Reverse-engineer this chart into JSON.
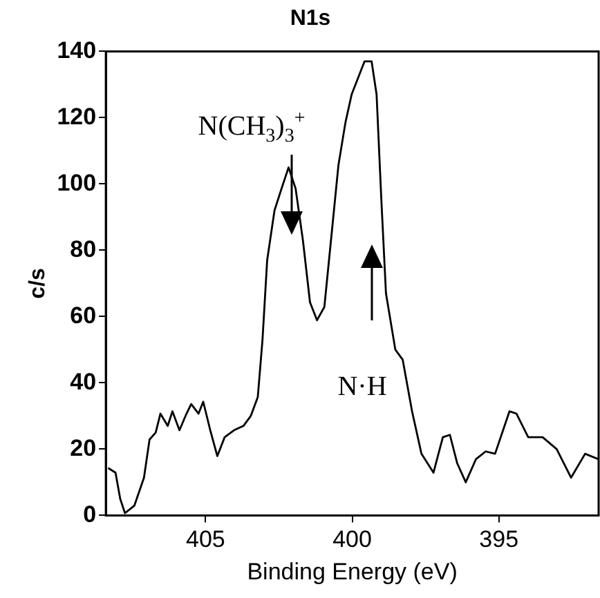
{
  "chart_data": {
    "type": "line",
    "title": "N1s",
    "xlabel": "Binding Energy (eV)",
    "ylabel": "c/s",
    "xlim": [
      408.4,
      391.6
    ],
    "xticks": [
      405,
      400,
      395
    ],
    "ylim": [
      0,
      140
    ],
    "yticks": [
      0,
      20,
      40,
      60,
      80,
      100,
      120,
      140
    ],
    "grid": false,
    "legend": false,
    "marker": "none",
    "line_style": "solid",
    "series": [
      {
        "color": "#000000",
        "x": [
          408.32,
          408.07,
          407.91,
          407.75,
          407.43,
          407.1,
          406.91,
          406.7,
          406.54,
          406.29,
          406.13,
          405.89,
          405.65,
          405.49,
          405.24,
          405.08,
          404.84,
          404.6,
          404.35,
          404.03,
          403.71,
          403.46,
          403.22,
          403.06,
          402.9,
          402.65,
          402.41,
          402.17,
          401.93,
          401.68,
          401.44,
          401.2,
          400.95,
          400.71,
          400.47,
          400.23,
          400.02,
          399.58,
          399.34,
          399.17,
          399.01,
          398.85,
          398.53,
          398.28,
          397.96,
          397.64,
          397.23,
          396.91,
          396.67,
          396.42,
          396.13,
          395.78,
          395.45,
          395.13,
          394.64,
          394.4,
          394.0,
          393.51,
          393.03,
          392.54,
          392.06,
          391.62
        ],
        "values": [
          14.3,
          12.9,
          5,
          0.7,
          2.9,
          11.4,
          22.9,
          25,
          30.7,
          27,
          31.4,
          25.7,
          30.7,
          33.6,
          30.7,
          34.3,
          25.7,
          17.9,
          23.6,
          25.7,
          27,
          30,
          35.7,
          52.9,
          77,
          92,
          98.6,
          105,
          98.6,
          82.9,
          64.3,
          58.9,
          62.9,
          84.3,
          105.7,
          118.6,
          127,
          137,
          137,
          127,
          95.7,
          67,
          50,
          47,
          31.4,
          18.6,
          12.9,
          23.6,
          24.3,
          15.7,
          10,
          17,
          19.3,
          18.6,
          31.4,
          30.7,
          23.6,
          23.6,
          20,
          11.4,
          18.6,
          17
        ]
      }
    ],
    "annotations": [
      "N(CH$_{3}$)$_{3}$$^{+}$",
      "N·H"
    ]
  }
}
